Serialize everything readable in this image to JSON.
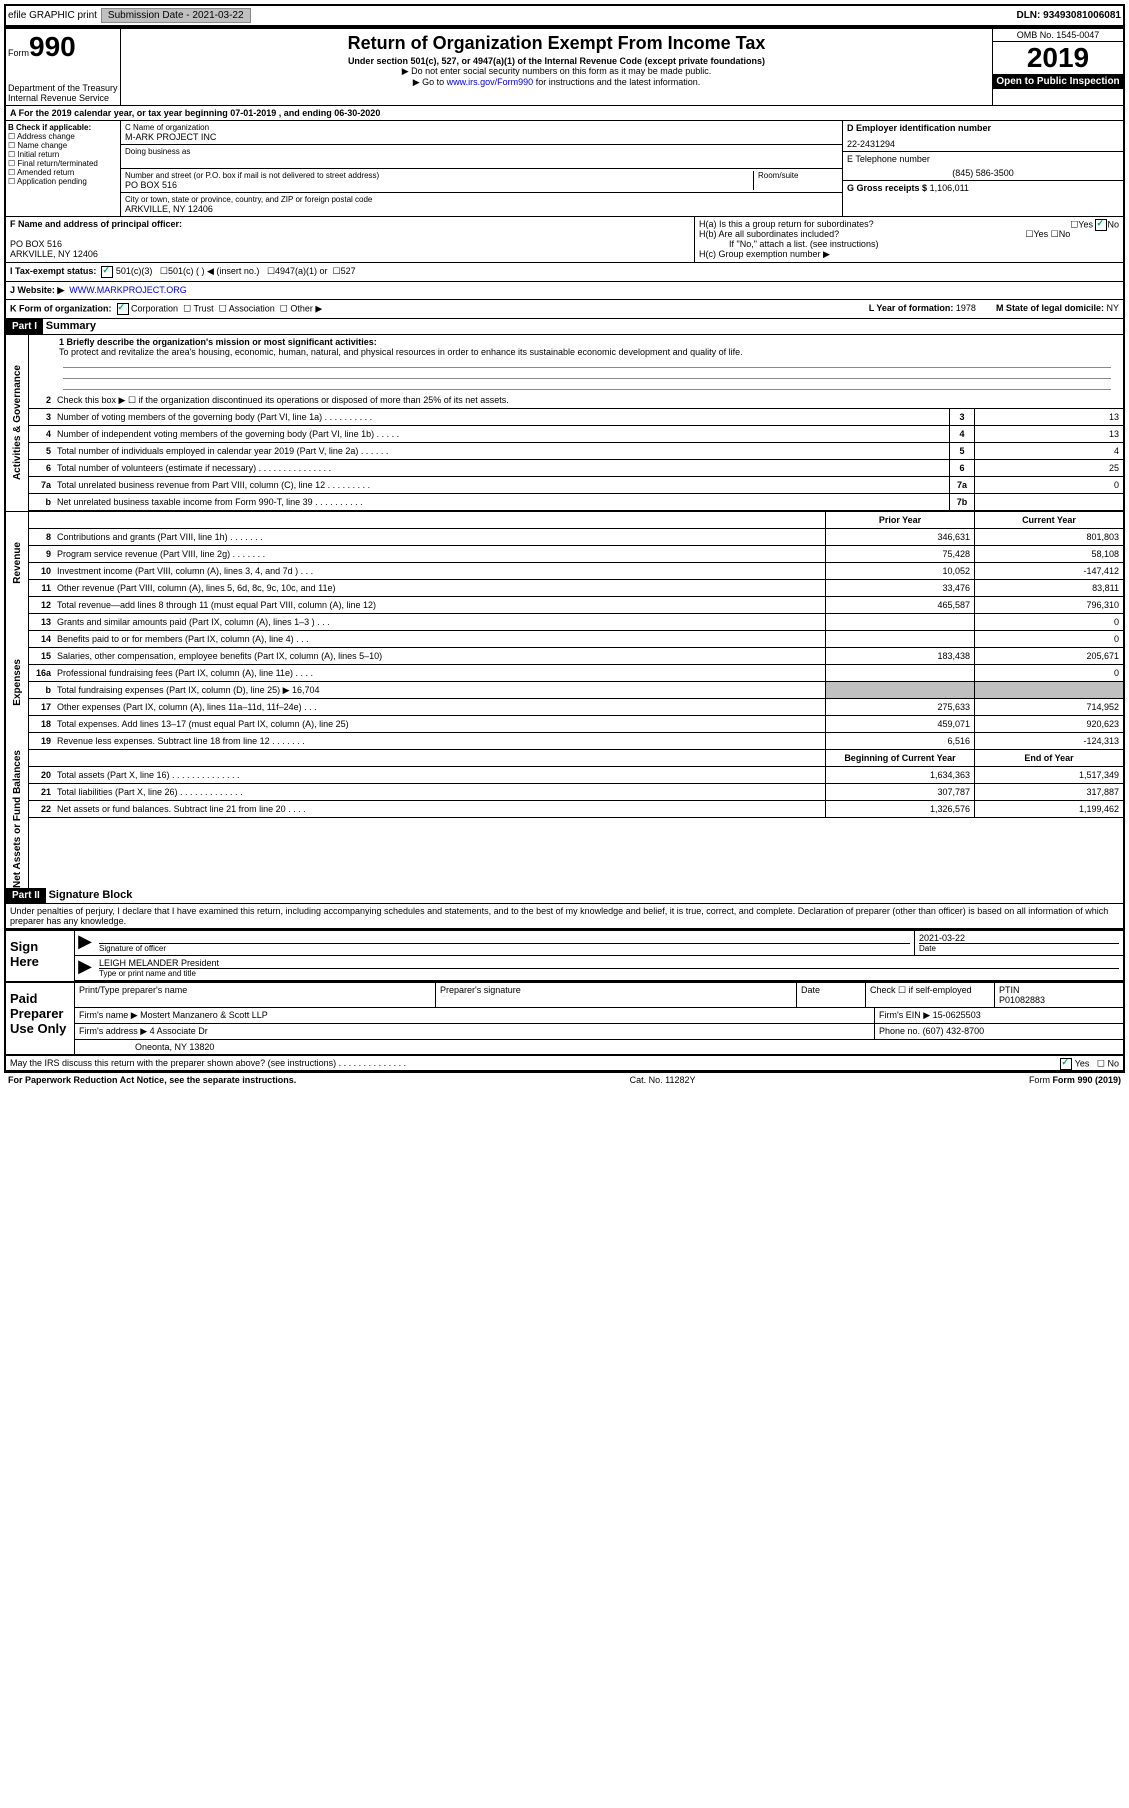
{
  "top": {
    "efile": "efile GRAPHIC print",
    "subdate_label": "Submission Date - 2021-03-22",
    "dln": "DLN: 93493081006081"
  },
  "header": {
    "form_label": "Form",
    "form_no": "990",
    "dept": "Department of the Treasury\nInternal Revenue Service",
    "title": "Return of Organization Exempt From Income Tax",
    "sub1": "Under section 501(c), 527, or 4947(a)(1) of the Internal Revenue Code (except private foundations)",
    "sub2": "▶ Do not enter social security numbers on this form as it may be made public.",
    "sub3_pre": "▶ Go to ",
    "sub3_link": "www.irs.gov/Form990",
    "sub3_post": " for instructions and the latest information.",
    "omb": "OMB No. 1545-0047",
    "year": "2019",
    "pub": "Open to Public Inspection"
  },
  "rowA": "A  For the 2019 calendar year, or tax year beginning 07-01-2019   , and ending 06-30-2020",
  "B": {
    "label": "B Check if applicable:",
    "items": [
      "Address change",
      "Name change",
      "Initial return",
      "Final return/terminated",
      "Amended return",
      "Application pending"
    ]
  },
  "C": {
    "name_label": "C Name of organization",
    "name": "M-ARK PROJECT INC",
    "dba_label": "Doing business as",
    "addr_label": "Number and street (or P.O. box if mail is not delivered to street address)",
    "room_label": "Room/suite",
    "addr": "PO BOX 516",
    "city_label": "City or town, state or province, country, and ZIP or foreign postal code",
    "city": "ARKVILLE, NY  12406"
  },
  "D": {
    "label": "D Employer identification number",
    "val": "22-2431294"
  },
  "E": {
    "label": "E Telephone number",
    "val": "(845) 586-3500"
  },
  "G": {
    "label": "G Gross receipts $",
    "val": "1,106,011"
  },
  "F": {
    "label": "F Name and address of principal officer:",
    "addr1": "PO BOX 516",
    "addr2": "ARKVILLE, NY  12406"
  },
  "H": {
    "a": "H(a)  Is this a group return for subordinates?",
    "b": "H(b)  Are all subordinates included?",
    "b_note": "If \"No,\" attach a list. (see instructions)",
    "c": "H(c)  Group exemption number ▶"
  },
  "I": {
    "label": "I  Tax-exempt status:",
    "opt1": "501(c)(3)",
    "opt2": "501(c) (  ) ◀ (insert no.)",
    "opt3": "4947(a)(1) or",
    "opt4": "527"
  },
  "J": {
    "label": "J  Website: ▶",
    "val": "WWW.MARKPROJECT.ORG"
  },
  "K": {
    "label": "K Form of organization:",
    "corp": "Corporation",
    "trust": "Trust",
    "assoc": "Association",
    "other": "Other ▶"
  },
  "L": {
    "label": "L Year of formation:",
    "val": "1978"
  },
  "M": {
    "label": "M State of legal domicile:",
    "val": "NY"
  },
  "part1": {
    "hdr": "Part I",
    "title": "Summary"
  },
  "mission": {
    "label": "1  Briefly describe the organization's mission or most significant activities:",
    "text": "To protect and revitalize the area's housing, economic, human, natural, and physical resources in order to enhance its sustainable economic development and quality of life."
  },
  "gov_lines": [
    {
      "n": "2",
      "d": "Check this box ▶ ☐ if the organization discontinued its operations or disposed of more than 25% of its net assets.",
      "box": "",
      "v": ""
    },
    {
      "n": "3",
      "d": "Number of voting members of the governing body (Part VI, line 1a)  .  .  .  .  .  .  .  .  .  .",
      "box": "3",
      "v": "13"
    },
    {
      "n": "4",
      "d": "Number of independent voting members of the governing body (Part VI, line 1b)  .  .  .  .  .",
      "box": "4",
      "v": "13"
    },
    {
      "n": "5",
      "d": "Total number of individuals employed in calendar year 2019 (Part V, line 2a)  .  .  .  .  .  .",
      "box": "5",
      "v": "4"
    },
    {
      "n": "6",
      "d": "Total number of volunteers (estimate if necessary)  .  .  .  .  .  .  .  .  .  .  .  .  .  .  .",
      "box": "6",
      "v": "25"
    },
    {
      "n": "7a",
      "d": "Total unrelated business revenue from Part VIII, column (C), line 12  .  .  .  .  .  .  .  .  .",
      "box": "7a",
      "v": "0"
    },
    {
      "n": "b",
      "d": "Net unrelated business taxable income from Form 990-T, line 39  .  .  .  .  .  .  .  .  .  .",
      "box": "7b",
      "v": ""
    }
  ],
  "col_hdr": {
    "prior": "Prior Year",
    "current": "Current Year",
    "beg": "Beginning of Current Year",
    "end": "End of Year"
  },
  "rev": [
    {
      "n": "8",
      "d": "Contributions and grants (Part VIII, line 1h)  .  .  .  .  .  .  .",
      "p": "346,631",
      "c": "801,803"
    },
    {
      "n": "9",
      "d": "Program service revenue (Part VIII, line 2g)  .  .  .  .  .  .  .",
      "p": "75,428",
      "c": "58,108"
    },
    {
      "n": "10",
      "d": "Investment income (Part VIII, column (A), lines 3, 4, and 7d )  .  .  .",
      "p": "10,052",
      "c": "-147,412"
    },
    {
      "n": "11",
      "d": "Other revenue (Part VIII, column (A), lines 5, 6d, 8c, 9c, 10c, and 11e)",
      "p": "33,476",
      "c": "83,811"
    },
    {
      "n": "12",
      "d": "Total revenue—add lines 8 through 11 (must equal Part VIII, column (A), line 12)",
      "p": "465,587",
      "c": "796,310"
    }
  ],
  "exp": [
    {
      "n": "13",
      "d": "Grants and similar amounts paid (Part IX, column (A), lines 1–3 )  .  .  .",
      "p": "",
      "c": "0"
    },
    {
      "n": "14",
      "d": "Benefits paid to or for members (Part IX, column (A), line 4)  .  .  .",
      "p": "",
      "c": "0"
    },
    {
      "n": "15",
      "d": "Salaries, other compensation, employee benefits (Part IX, column (A), lines 5–10)",
      "p": "183,438",
      "c": "205,671"
    },
    {
      "n": "16a",
      "d": "Professional fundraising fees (Part IX, column (A), line 11e)  .  .  .  .",
      "p": "",
      "c": "0"
    },
    {
      "n": "b",
      "d": "Total fundraising expenses (Part IX, column (D), line 25) ▶ 16,704",
      "p": "",
      "c": "",
      "shade": true
    },
    {
      "n": "17",
      "d": "Other expenses (Part IX, column (A), lines 11a–11d, 11f–24e)  .  .  .",
      "p": "275,633",
      "c": "714,952"
    },
    {
      "n": "18",
      "d": "Total expenses. Add lines 13–17 (must equal Part IX, column (A), line 25)",
      "p": "459,071",
      "c": "920,623"
    },
    {
      "n": "19",
      "d": "Revenue less expenses. Subtract line 18 from line 12  .  .  .  .  .  .  .",
      "p": "6,516",
      "c": "-124,313"
    }
  ],
  "net": [
    {
      "n": "20",
      "d": "Total assets (Part X, line 16)  .  .  .  .  .  .  .  .  .  .  .  .  .  .",
      "p": "1,634,363",
      "c": "1,517,349"
    },
    {
      "n": "21",
      "d": "Total liabilities (Part X, line 26)  .  .  .  .  .  .  .  .  .  .  .  .  .",
      "p": "307,787",
      "c": "317,887"
    },
    {
      "n": "22",
      "d": "Net assets or fund balances. Subtract line 21 from line 20  .  .  .  .",
      "p": "1,326,576",
      "c": "1,199,462"
    }
  ],
  "part2": {
    "hdr": "Part II",
    "title": "Signature Block"
  },
  "declare": "Under penalties of perjury, I declare that I have examined this return, including accompanying schedules and statements, and to the best of my knowledge and belief, it is true, correct, and complete. Declaration of preparer (other than officer) is based on all information of which preparer has any knowledge.",
  "sign": {
    "left": "Sign Here",
    "sig_label": "Signature of officer",
    "date_label": "Date",
    "date": "2021-03-22",
    "name": "LEIGH MELANDER President",
    "name_label": "Type or print name and title"
  },
  "paid": {
    "left": "Paid Preparer Use Only",
    "c1": "Print/Type preparer's name",
    "c2": "Preparer's signature",
    "c3": "Date",
    "c4a": "Check ☐ if self-employed",
    "c4b_label": "PTIN",
    "c4b": "P01082883",
    "firm_label": "Firm's name  ▶",
    "firm": "Mostert Manzanero & Scott LLP",
    "ein_label": "Firm's EIN ▶",
    "ein": "15-0625503",
    "addr_label": "Firm's address ▶",
    "addr1": "4 Associate Dr",
    "addr2": "Oneonta, NY  13820",
    "phone_label": "Phone no.",
    "phone": "(607) 432-8700",
    "discuss": "May the IRS discuss this return with the preparer shown above? (see instructions)  .  .  .  .  .  .  .  .  .  .  .  .  .  ."
  },
  "footer": {
    "l": "For Paperwork Reduction Act Notice, see the separate instructions.",
    "m": "Cat. No. 11282Y",
    "r": "Form 990 (2019)"
  },
  "sides": {
    "gov": "Activities & Governance",
    "rev": "Revenue",
    "exp": "Expenses",
    "net": "Net Assets or Fund Balances"
  }
}
